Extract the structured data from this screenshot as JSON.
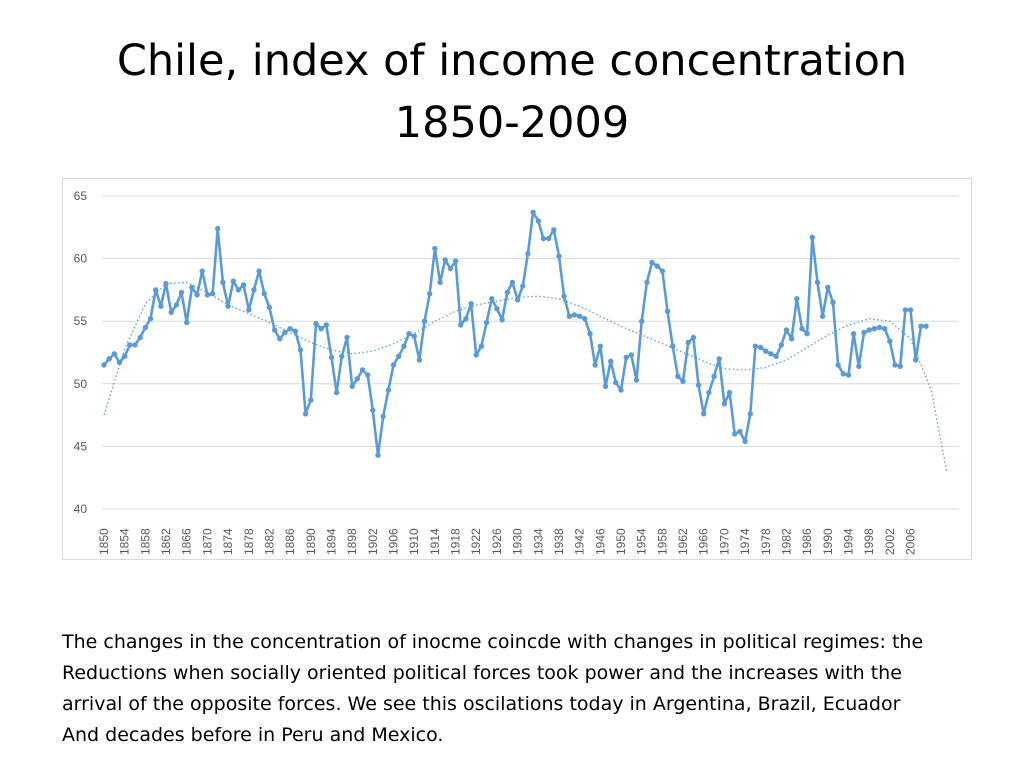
{
  "slide": {
    "title_line1": "Chile, index of income concentration",
    "title_line2": "1850-2009"
  },
  "caption": [
    "The changes in the concentration of inocme coincde with changes in political regimes: the",
    "Reductions when socially oriented political forces took power and the increases with the",
    "arrival of the opposite forces.  We see this oscilations today in Argentina, Brazil, Ecuador",
    "And decades before in Peru and Mexico."
  ],
  "chart_data": {
    "type": "line",
    "title": "",
    "xlabel": "",
    "ylabel": "",
    "ylim": [
      40,
      65
    ],
    "yticks": [
      40,
      45,
      50,
      55,
      60,
      65
    ],
    "xticks": [
      1850,
      1854,
      1858,
      1862,
      1866,
      1870,
      1874,
      1878,
      1882,
      1886,
      1890,
      1894,
      1898,
      1902,
      1906,
      1910,
      1914,
      1918,
      1922,
      1926,
      1930,
      1934,
      1938,
      1942,
      1946,
      1950,
      1954,
      1958,
      1962,
      1966,
      1970,
      1974,
      1978,
      1982,
      1986,
      1990,
      1994,
      1998,
      2002,
      2006
    ],
    "grid": "horizontal",
    "colors": {
      "series": "#5b9bd5",
      "trend": "#5b9bd5",
      "grid": "#d9d9d9",
      "axis_text": "#595959"
    },
    "series": [
      {
        "x": [
          1850,
          1851,
          1852,
          1853,
          1854,
          1855,
          1856,
          1857,
          1858,
          1859,
          1860,
          1861,
          1862,
          1863,
          1864,
          1865,
          1866,
          1867,
          1868,
          1869,
          1870,
          1871,
          1872,
          1873,
          1874,
          1875,
          1876,
          1877,
          1878,
          1879,
          1880,
          1881,
          1882,
          1883,
          1884,
          1885,
          1886,
          1887,
          1888,
          1889,
          1890,
          1891,
          1892,
          1893,
          1894,
          1895,
          1896,
          1897,
          1898,
          1899,
          1900,
          1901,
          1902,
          1903,
          1904,
          1905,
          1906,
          1907,
          1908,
          1909,
          1910,
          1911,
          1912,
          1913,
          1914,
          1915,
          1916,
          1917,
          1918,
          1919,
          1920,
          1921,
          1922,
          1923,
          1924,
          1925,
          1926,
          1927,
          1928,
          1929,
          1930,
          1931,
          1932,
          1933,
          1934,
          1935,
          1936,
          1937,
          1938,
          1939,
          1940,
          1941,
          1942,
          1943,
          1944,
          1945,
          1946,
          1947,
          1948,
          1949,
          1950,
          1951,
          1952,
          1953,
          1954,
          1955,
          1956,
          1957,
          1958,
          1959,
          1960,
          1961,
          1962,
          1963,
          1964,
          1965,
          1966,
          1967,
          1968,
          1969,
          1970,
          1971,
          1972,
          1973,
          1974,
          1975,
          1976,
          1977,
          1978,
          1979,
          1980,
          1981,
          1982,
          1983,
          1984,
          1985,
          1986,
          1987,
          1988,
          1989,
          1990,
          1991,
          1992,
          1993,
          1994,
          1995,
          1996,
          1997,
          1998,
          1999,
          2000,
          2001,
          2002,
          2003,
          2004,
          2005,
          2006,
          2007,
          2008,
          2009
        ],
        "values": [
          51.5,
          52.0,
          52.4,
          51.7,
          52.2,
          53.1,
          53.1,
          53.7,
          54.5,
          55.2,
          57.5,
          56.2,
          58.0,
          55.7,
          56.3,
          57.3,
          54.9,
          57.7,
          57.1,
          59.0,
          57.1,
          57.2,
          62.4,
          58.1,
          56.2,
          58.2,
          57.5,
          57.9,
          55.9,
          57.5,
          59.0,
          57.2,
          56.1,
          54.3,
          53.6,
          54.1,
          54.4,
          54.2,
          52.7,
          47.6,
          48.7,
          54.8,
          54.4,
          54.7,
          52.1,
          49.3,
          52.2,
          53.7,
          49.8,
          50.4,
          51.1,
          50.7,
          47.9,
          44.3,
          47.4,
          49.5,
          51.5,
          52.2,
          53.0,
          54.0,
          53.8,
          51.9,
          55.0,
          57.2,
          60.8,
          58.1,
          59.9,
          59.2,
          59.8,
          54.7,
          55.2,
          56.4,
          52.3,
          53.0,
          54.9,
          56.8,
          56.0,
          55.1,
          57.3,
          58.1,
          56.7,
          57.8,
          60.4,
          63.7,
          63.0,
          61.6,
          61.6,
          62.3,
          60.2,
          57.0,
          55.4,
          55.5,
          55.4,
          55.2,
          54.0,
          51.5,
          53.0,
          49.8,
          51.8,
          50.1,
          49.5,
          52.1,
          52.3,
          50.3,
          55.0,
          58.1,
          59.7,
          59.4,
          59.0,
          55.8,
          53.0,
          50.6,
          50.2,
          53.3,
          53.7,
          49.9,
          47.6,
          49.3,
          50.6,
          52.0,
          48.4,
          49.3,
          46.0,
          46.2,
          45.4,
          47.6,
          53.0,
          52.9,
          52.6,
          52.4,
          52.2,
          53.1,
          54.3,
          53.6,
          56.8,
          54.4,
          54.0,
          61.7,
          58.1,
          55.4,
          57.7,
          56.5,
          51.5,
          50.8,
          50.7,
          54.0,
          51.4,
          54.1,
          54.3,
          54.4,
          54.5,
          54.4,
          53.4,
          51.5,
          51.4,
          55.9,
          55.9,
          51.9,
          54.6,
          54.6
        ]
      }
    ],
    "trendline": {
      "type": "polynomial",
      "x": [
        1850,
        1854,
        1858,
        1862,
        1866,
        1870,
        1874,
        1878,
        1882,
        1886,
        1890,
        1894,
        1898,
        1902,
        1906,
        1910,
        1914,
        1918,
        1922,
        1926,
        1930,
        1934,
        1938,
        1942,
        1946,
        1950,
        1954,
        1958,
        1962,
        1966,
        1970,
        1974,
        1978,
        1982,
        1986,
        1990,
        1994,
        1998,
        2002,
        2006,
        2010,
        2013
      ],
      "values": [
        47.5,
        52.8,
        56.4,
        58.0,
        58.1,
        57.3,
        56.3,
        55.6,
        54.9,
        54.1,
        53.3,
        52.7,
        52.4,
        52.6,
        53.2,
        54.0,
        55.0,
        55.8,
        56.3,
        56.6,
        56.9,
        57.0,
        56.8,
        56.2,
        55.4,
        54.6,
        53.9,
        53.2,
        52.5,
        51.8,
        51.2,
        51.1,
        51.3,
        51.9,
        52.9,
        53.9,
        54.7,
        55.2,
        55.0,
        53.6,
        49.5,
        43.0
      ]
    }
  }
}
